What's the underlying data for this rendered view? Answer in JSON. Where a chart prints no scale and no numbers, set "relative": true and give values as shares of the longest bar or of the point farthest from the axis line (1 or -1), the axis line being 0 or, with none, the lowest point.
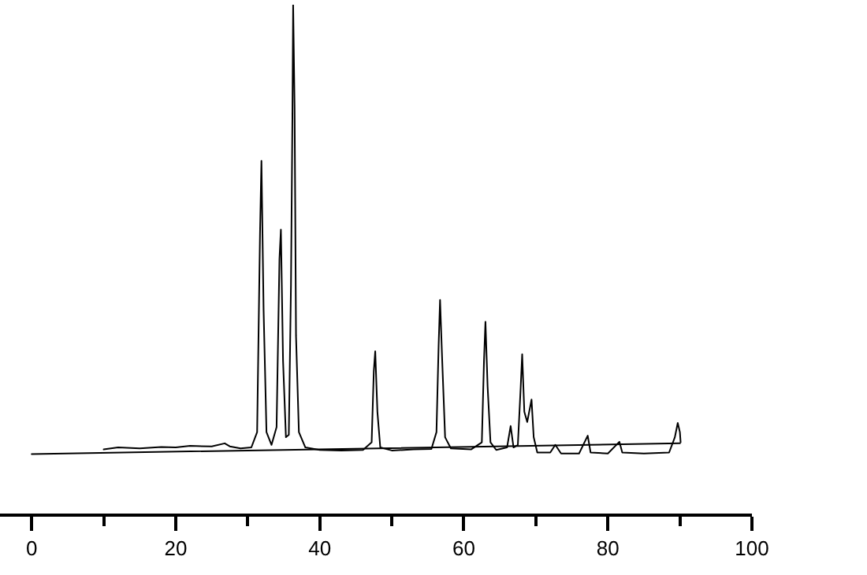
{
  "chart_data": {
    "type": "line",
    "relative": true,
    "xlim": [
      -4.4,
      100
    ],
    "xticks": [
      0,
      {
        "value": 10,
        "label": null
      },
      20,
      {
        "value": 30,
        "label": null
      },
      40,
      {
        "value": 50,
        "label": null
      },
      60,
      {
        "value": 70,
        "label": null
      },
      80,
      {
        "value": 90,
        "label": null
      },
      100
    ],
    "marker": "none",
    "line_style": "solid",
    "series": [
      {
        "color": "#000000",
        "x": [
          10,
          12,
          15,
          18,
          20,
          22,
          25,
          26.8,
          27.5,
          29,
          30.5,
          31.3,
          31.7,
          31.9,
          32.2,
          32.6,
          33.3,
          34.0,
          34.4,
          34.6,
          34.9,
          35.3,
          35.7,
          36.0,
          36.2,
          36.3,
          36.5,
          36.7,
          37.1,
          38,
          40,
          43,
          46,
          47.2,
          47.5,
          47.7,
          48.0,
          48.4,
          50,
          53,
          55.5,
          56.2,
          56.5,
          56.7,
          57.0,
          57.4,
          58.2,
          61,
          62.5,
          62.8,
          63.0,
          63.3,
          63.7,
          64.5,
          66.0,
          66.5,
          66.9,
          67.5,
          67.9,
          68.1,
          68.4,
          68.8,
          69.4,
          69.7,
          70.2,
          72,
          72.7,
          73.5,
          76,
          77.2,
          77.6,
          80,
          81.6,
          82,
          85,
          88.5,
          89.3,
          89.7,
          90.0,
          90.1
        ],
        "values": [
          0.126,
          0.13,
          0.128,
          0.131,
          0.13,
          0.133,
          0.132,
          0.138,
          0.132,
          0.128,
          0.13,
          0.16,
          0.55,
          0.693,
          0.4,
          0.16,
          0.135,
          0.17,
          0.5,
          0.558,
          0.3,
          0.15,
          0.155,
          0.45,
          0.78,
          1.0,
          0.8,
          0.35,
          0.16,
          0.13,
          0.125,
          0.124,
          0.125,
          0.14,
          0.28,
          0.319,
          0.2,
          0.13,
          0.124,
          0.126,
          0.127,
          0.16,
          0.33,
          0.42,
          0.3,
          0.15,
          0.128,
          0.126,
          0.14,
          0.3,
          0.377,
          0.25,
          0.14,
          0.125,
          0.13,
          0.172,
          0.13,
          0.135,
          0.25,
          0.313,
          0.2,
          0.18,
          0.224,
          0.15,
          0.12,
          0.12,
          0.135,
          0.118,
          0.118,
          0.153,
          0.12,
          0.118,
          0.141,
          0.12,
          0.118,
          0.12,
          0.15,
          0.178,
          0.16,
          0.14
        ]
      },
      {
        "color": "#000000",
        "x": [
          0,
          90
        ],
        "values": [
          0.117,
          0.138
        ]
      }
    ]
  }
}
